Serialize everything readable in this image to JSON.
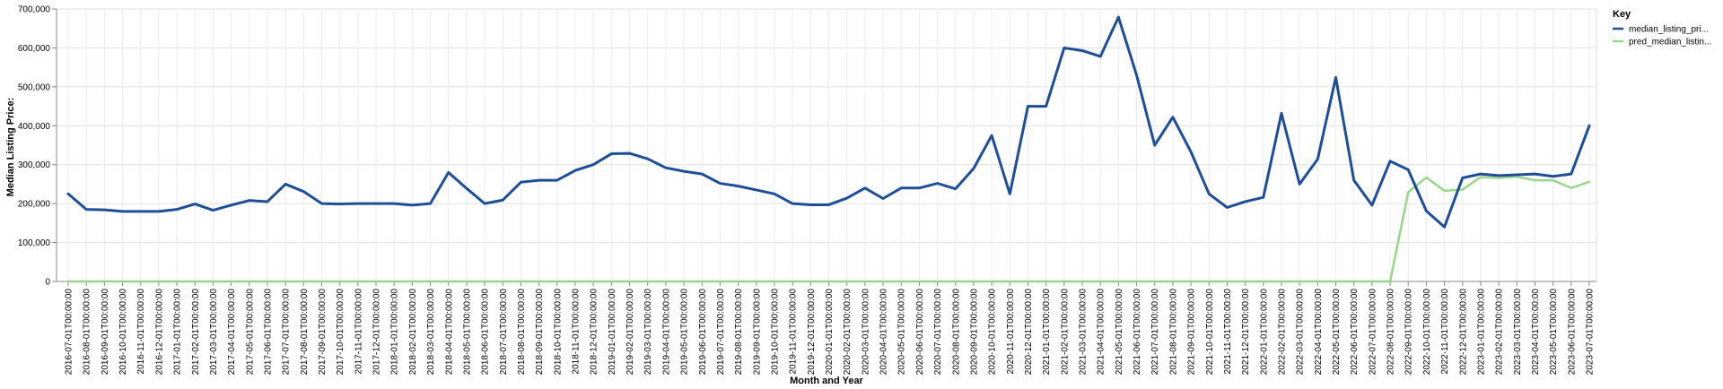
{
  "chart_data": {
    "type": "line",
    "xlabel": "Month and Year",
    "ylabel": "Median Listing Price:",
    "ylim": [
      0,
      700000
    ],
    "yticks": [
      "0",
      "100,000",
      "200,000",
      "300,000",
      "400,000",
      "500,000",
      "600,000",
      "700,000"
    ],
    "grid": true,
    "legend_position": "right",
    "legend": {
      "title": "Key",
      "entries": [
        "median_listing_pri...",
        "pred_median_listin..."
      ]
    },
    "x": [
      "2016-07-01T00:00:00",
      "2016-08-01T00:00:00",
      "2016-09-01T00:00:00",
      "2016-10-01T00:00:00",
      "2016-11-01T00:00:00",
      "2016-12-01T00:00:00",
      "2017-01-01T00:00:00",
      "2017-02-01T00:00:00",
      "2017-03-01T00:00:00",
      "2017-04-01T00:00:00",
      "2017-05-01T00:00:00",
      "2017-06-01T00:00:00",
      "2017-07-01T00:00:00",
      "2017-08-01T00:00:00",
      "2017-09-01T00:00:00",
      "2017-10-01T00:00:00",
      "2017-11-01T00:00:00",
      "2017-12-01T00:00:00",
      "2018-01-01T00:00:00",
      "2018-02-01T00:00:00",
      "2018-03-01T00:00:00",
      "2018-04-01T00:00:00",
      "2018-05-01T00:00:00",
      "2018-06-01T00:00:00",
      "2018-07-01T00:00:00",
      "2018-08-01T00:00:00",
      "2018-09-01T00:00:00",
      "2018-10-01T00:00:00",
      "2018-11-01T00:00:00",
      "2018-12-01T00:00:00",
      "2019-01-01T00:00:00",
      "2019-02-01T00:00:00",
      "2019-03-01T00:00:00",
      "2019-04-01T00:00:00",
      "2019-05-01T00:00:00",
      "2019-06-01T00:00:00",
      "2019-07-01T00:00:00",
      "2019-08-01T00:00:00",
      "2019-09-01T00:00:00",
      "2019-10-01T00:00:00",
      "2019-11-01T00:00:00",
      "2019-12-01T00:00:00",
      "2020-01-01T00:00:00",
      "2020-02-01T00:00:00",
      "2020-03-01T00:00:00",
      "2020-04-01T00:00:00",
      "2020-05-01T00:00:00",
      "2020-06-01T00:00:00",
      "2020-07-01T00:00:00",
      "2020-08-01T00:00:00",
      "2020-09-01T00:00:00",
      "2020-10-01T00:00:00",
      "2020-11-01T00:00:00",
      "2020-12-01T00:00:00",
      "2021-01-01T00:00:00",
      "2021-02-01T00:00:00",
      "2021-03-01T00:00:00",
      "2021-04-01T00:00:00",
      "2021-05-01T00:00:00",
      "2021-06-01T00:00:00",
      "2021-07-01T00:00:00",
      "2021-08-01T00:00:00",
      "2021-09-01T00:00:00",
      "2021-10-01T00:00:00",
      "2021-11-01T00:00:00",
      "2021-12-01T00:00:00",
      "2022-01-01T00:00:00",
      "2022-02-01T00:00:00",
      "2022-03-01T00:00:00",
      "2022-04-01T00:00:00",
      "2022-05-01T00:00:00",
      "2022-06-01T00:00:00",
      "2022-07-01T00:00:00",
      "2022-08-01T00:00:00",
      "2022-09-01T00:00:00",
      "2022-10-01T00:00:00",
      "2022-11-01T00:00:00",
      "2022-12-01T00:00:00",
      "2023-01-01T00:00:00",
      "2023-02-01T00:00:00",
      "2023-03-01T00:00:00",
      "2023-04-01T00:00:00",
      "2023-05-01T00:00:00",
      "2023-06-01T00:00:00",
      "2023-07-01T00:00:00"
    ],
    "series": [
      {
        "name": "median_listing_pri...",
        "color": "#1f4e99",
        "values": [
          225000,
          185000,
          184000,
          180000,
          180000,
          180000,
          185000,
          199000,
          183000,
          196000,
          208000,
          205000,
          250000,
          231000,
          200000,
          199000,
          200000,
          200000,
          200000,
          196000,
          200000,
          280000,
          239000,
          200000,
          209000,
          255000,
          260000,
          260000,
          285000,
          300000,
          328000,
          329000,
          315000,
          292000,
          283000,
          276000,
          252000,
          245000,
          235000,
          225000,
          200000,
          197000,
          197000,
          214000,
          240000,
          213000,
          240000,
          240000,
          252000,
          238000,
          290000,
          375000,
          225000,
          450000,
          450000,
          600000,
          593000,
          578000,
          679000,
          530000,
          350000,
          422000,
          333000,
          225000,
          190000,
          205000,
          216000,
          432000,
          250000,
          314000,
          524000,
          260000,
          196000,
          309000,
          287000,
          181000,
          140000,
          266000,
          276000,
          272000,
          274000,
          276000,
          270000,
          276000,
          400000
        ]
      },
      {
        "name": "pred_median_listin...",
        "color": "#98d68a",
        "values": [
          0,
          0,
          0,
          0,
          0,
          0,
          0,
          0,
          0,
          0,
          0,
          0,
          0,
          0,
          0,
          0,
          0,
          0,
          0,
          0,
          0,
          0,
          0,
          0,
          0,
          0,
          0,
          0,
          0,
          0,
          0,
          0,
          0,
          0,
          0,
          0,
          0,
          0,
          0,
          0,
          0,
          0,
          0,
          0,
          0,
          0,
          0,
          0,
          0,
          0,
          0,
          0,
          0,
          0,
          0,
          0,
          0,
          0,
          0,
          0,
          0,
          0,
          0,
          0,
          0,
          0,
          0,
          0,
          0,
          0,
          0,
          0,
          0,
          0,
          229000,
          267000,
          233000,
          236000,
          268000,
          266000,
          269000,
          260000,
          260000,
          240000,
          256000
        ]
      }
    ]
  }
}
